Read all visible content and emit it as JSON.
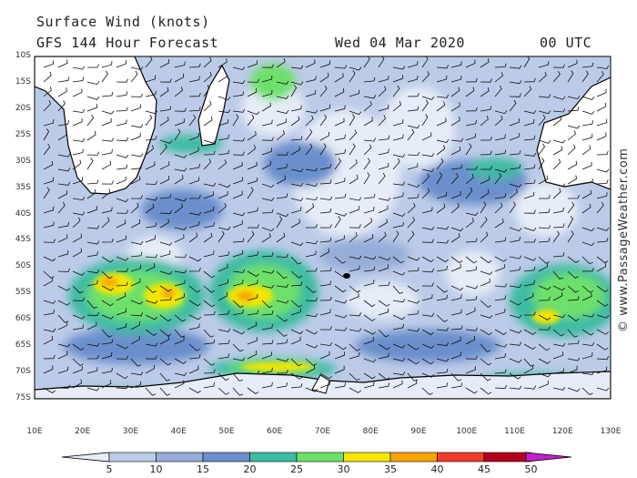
{
  "header": {
    "title": "Surface Wind (knots)",
    "subtitle": "GFS 144 Hour Forecast",
    "date": "Wed 04 Mar 2020",
    "time": "00 UTC"
  },
  "credit": "© www.PassageWeather.com",
  "map": {
    "lat_labels": [
      "10S",
      "15S",
      "20S",
      "25S",
      "30S",
      "35S",
      "40S",
      "45S",
      "50S",
      "55S",
      "60S",
      "65S",
      "70S",
      "75S"
    ],
    "lon_labels": [
      "10E",
      "20E",
      "30E",
      "40E",
      "50E",
      "60E",
      "70E",
      "80E",
      "90E",
      "100E",
      "110E",
      "120E",
      "130E"
    ],
    "lat_range": [
      -75,
      -10
    ],
    "lon_range": [
      10,
      130
    ]
  },
  "colorbar": {
    "labels": [
      "5",
      "10",
      "15",
      "20",
      "25",
      "30",
      "35",
      "40",
      "45",
      "50"
    ],
    "colors": [
      "#e6edf8",
      "#bccbe8",
      "#96add9",
      "#6b8fcc",
      "#3dbba3",
      "#6de06a",
      "#f4e600",
      "#f7a300",
      "#ef3b2c",
      "#b4001e",
      "#c021c8"
    ]
  }
}
